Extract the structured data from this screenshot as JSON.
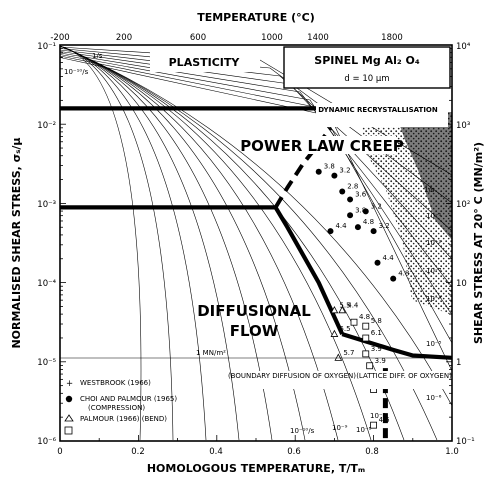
{
  "chart_data": {
    "type": "deformation-mechanism-map",
    "title": "SPINEL  Mg Al₂ O₄",
    "grain_size": "d = 10 μm",
    "xlabel": "HOMOLOGOUS  TEMPERATURE, T/Tₘ",
    "xlabel_top": "TEMPERATURE (°C)",
    "ylabel_left": "NORMALISED SHEAR STRESS, σₛ/μ",
    "ylabel_right": "SHEAR STRESS AT 20° C  (MN/m²)",
    "xlim": [
      0,
      1.0
    ],
    "ylim_log10": [
      -6,
      -1
    ],
    "x_ticks": [
      "0",
      "0.2",
      "0.4",
      "0.6",
      "0.8",
      "1.0"
    ],
    "x_ticks_top": [
      "-200",
      "200",
      "600",
      "1000",
      "1400",
      "1800"
    ],
    "y_ticks_left": [
      "10⁻¹",
      "10⁻²",
      "10⁻³",
      "10⁻⁴",
      "10⁻⁵",
      "10⁻⁶"
    ],
    "y_ticks_right": [
      "10⁴",
      "10³",
      "10²",
      "10",
      "1",
      "10⁻¹"
    ],
    "fields": {
      "plasticity": "PLASTICITY",
      "dyn_recryst": "DYNAMIC RECRYSTALLISATION",
      "power_law": "POWER  LAW  CREEP",
      "diffusional_1": "DIFFUSIONAL",
      "diffusional_2": "FLOW",
      "boundary_diff": "(BOUNDARY DIFFUSION OF OXYGEN)",
      "lattice_diff": "(LATTICE DIFF. OF OXYGEN)"
    },
    "contour_labels": {
      "top_1": "1/s",
      "top_2": "10⁻¹⁰/s",
      "right": [
        "1/s",
        "10⁻¹",
        "10⁻²",
        "10⁻³",
        "10⁻⁴",
        "10⁻⁵",
        "10⁻⁶"
      ],
      "bottom": [
        "10⁻¹⁰/s",
        "10⁻⁹",
        "10⁻⁸",
        "10⁻⁷"
      ]
    },
    "annotations": {
      "stress_line": "1 MN/m²"
    },
    "legend": [
      {
        "symbol": "plus",
        "text": "WESTBROOK (1966)"
      },
      {
        "symbol": "filled-circle",
        "text": "CHOI AND PALMOUR (1965)"
      },
      {
        "symbol": "none",
        "text": "(COMPRESSION)"
      },
      {
        "symbol": "triangle",
        "text": "PALMOUR (1966) (BEND)"
      }
    ],
    "field_boundaries": [
      {
        "name": "plasticity / power-law creep",
        "points": [
          [
            0,
            -1.8
          ],
          [
            0.9,
            -1.8
          ]
        ]
      },
      {
        "name": "power-law / diffusional (low T)",
        "points": [
          [
            0,
            -3.05
          ],
          [
            0.55,
            -3.05
          ],
          [
            0.58,
            -3.3
          ],
          [
            0.66,
            -4.0
          ],
          [
            0.72,
            -4.65
          ]
        ]
      },
      {
        "name": "power-law / diffusional (high T)",
        "points": [
          [
            0.72,
            -4.65
          ],
          [
            0.85,
            -4.85
          ],
          [
            0.9,
            -4.92
          ],
          [
            1.0,
            -4.95
          ]
        ]
      },
      {
        "name": "boundary / lattice diffusion",
        "points": [
          [
            0.83,
            -5.08
          ],
          [
            0.83,
            -6.0
          ]
        ]
      },
      {
        "name": "dynamic recrystallisation (dashed)",
        "points": [
          [
            0.55,
            -3.05
          ],
          [
            0.58,
            -2.8
          ],
          [
            0.62,
            -2.5
          ],
          [
            0.66,
            -2.25
          ],
          [
            0.69,
            -2.05
          ]
        ]
      }
    ],
    "data_points": [
      {
        "series": "Choi and Palmour",
        "x": 0.66,
        "y": -2.6,
        "label": "3.8"
      },
      {
        "series": "Choi and Palmour",
        "x": 0.7,
        "y": -2.65,
        "label": "3.2"
      },
      {
        "series": "Choi and Palmour",
        "x": 0.72,
        "y": -2.85,
        "label": "2.8"
      },
      {
        "series": "Choi and Palmour",
        "x": 0.74,
        "y": -2.95,
        "label": "3.6"
      },
      {
        "series": "Choi and Palmour",
        "x": 0.74,
        "y": -3.15,
        "label": "3.8"
      },
      {
        "series": "Choi and Palmour",
        "x": 0.69,
        "y": -3.35,
        "label": "4.4"
      },
      {
        "series": "Choi and Palmour",
        "x": 0.76,
        "y": -3.3,
        "label": "4.8"
      },
      {
        "series": "Choi and Palmour",
        "x": 0.78,
        "y": -3.1,
        "label": "3.2"
      },
      {
        "series": "Choi and Palmour",
        "x": 0.8,
        "y": -3.35,
        "label": "3.2"
      },
      {
        "series": "Choi and Palmour",
        "x": 0.81,
        "y": -3.75,
        "label": "4.4"
      },
      {
        "series": "Choi and Palmour",
        "x": 0.85,
        "y": -3.95,
        "label": "4.8"
      },
      {
        "series": "Palmour bend",
        "x": 0.7,
        "y": -4.35,
        "label": "5.5"
      },
      {
        "series": "Palmour bend",
        "x": 0.72,
        "y": -4.35,
        "label": "4.4"
      },
      {
        "series": "Palmour bend",
        "x": 0.7,
        "y": -4.65,
        "label": "6.5"
      },
      {
        "series": "Palmour bend",
        "x": 0.71,
        "y": -4.95,
        "label": "5.7"
      },
      {
        "series": "Westbrook",
        "x": 0.75,
        "y": -4.5,
        "label": "4.8"
      },
      {
        "series": "Westbrook",
        "x": 0.78,
        "y": -4.55,
        "label": "5.8"
      },
      {
        "series": "Westbrook",
        "x": 0.78,
        "y": -4.7,
        "label": "6.1"
      },
      {
        "series": "Westbrook",
        "x": 0.78,
        "y": -4.9,
        "label": "3.9"
      },
      {
        "series": "Westbrook",
        "x": 0.79,
        "y": -5.05,
        "label": "3.9"
      },
      {
        "series": "Westbrook",
        "x": 0.8,
        "y": -5.35,
        "label": "5.5"
      },
      {
        "series": "Westbrook",
        "x": 0.8,
        "y": -5.8,
        "label": "4.5"
      }
    ],
    "grid": false
  }
}
